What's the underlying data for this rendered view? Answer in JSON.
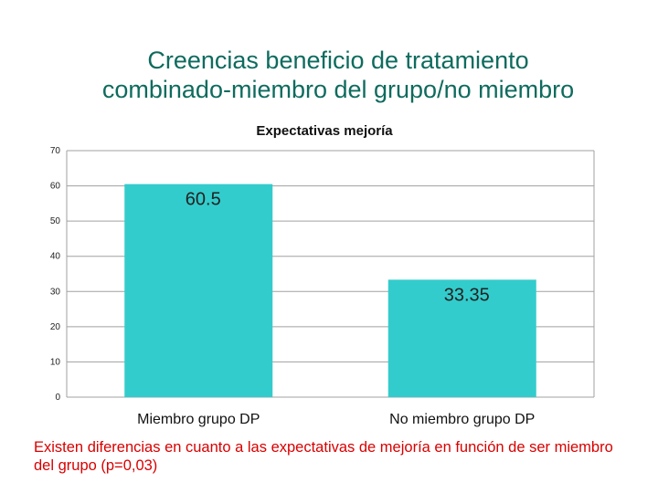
{
  "slide": {
    "title_line1": "Creencias beneficio de tratamiento",
    "title_line2": "combinado-miembro del grupo/no miembro",
    "footnote": "Existen diferencias en cuanto a las expectativas de mejoría en función de ser miembro del grupo (p=0,03)"
  },
  "chart_data": {
    "type": "bar",
    "title": "Expectativas mejoría",
    "categories": [
      "Miembro grupo DP",
      "No miembro grupo DP"
    ],
    "values": [
      60.5,
      33.35
    ],
    "data_labels": [
      "60.5",
      "33.35"
    ],
    "ylim": [
      0,
      70
    ],
    "yticks": [
      0,
      10,
      20,
      30,
      40,
      50,
      60,
      70
    ],
    "grid": true,
    "legend": "none",
    "bar_color": "#33cccc"
  }
}
